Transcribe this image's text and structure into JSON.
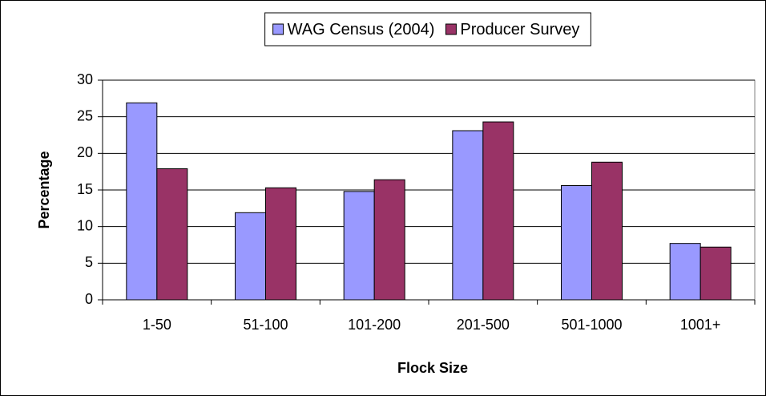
{
  "chart_data": {
    "type": "bar",
    "x_label": "Flock Size",
    "y_label": "Percentage",
    "categories": [
      "1-50",
      "51-100",
      "101-200",
      "201-500",
      "501-1000",
      "1001+"
    ],
    "series": [
      {
        "name": "WAG Census (2004)",
        "color": "#9999ff",
        "values": [
          26.9,
          11.9,
          14.8,
          23.1,
          15.6,
          7.7
        ]
      },
      {
        "name": "Producer Survey",
        "color": "#993366",
        "values": [
          17.9,
          15.3,
          16.4,
          24.3,
          18.8,
          7.2
        ]
      }
    ],
    "ylim": [
      0,
      30
    ],
    "yticks": [
      0,
      5,
      10,
      15,
      20,
      25,
      30
    ],
    "grid": true,
    "legend": "top"
  }
}
